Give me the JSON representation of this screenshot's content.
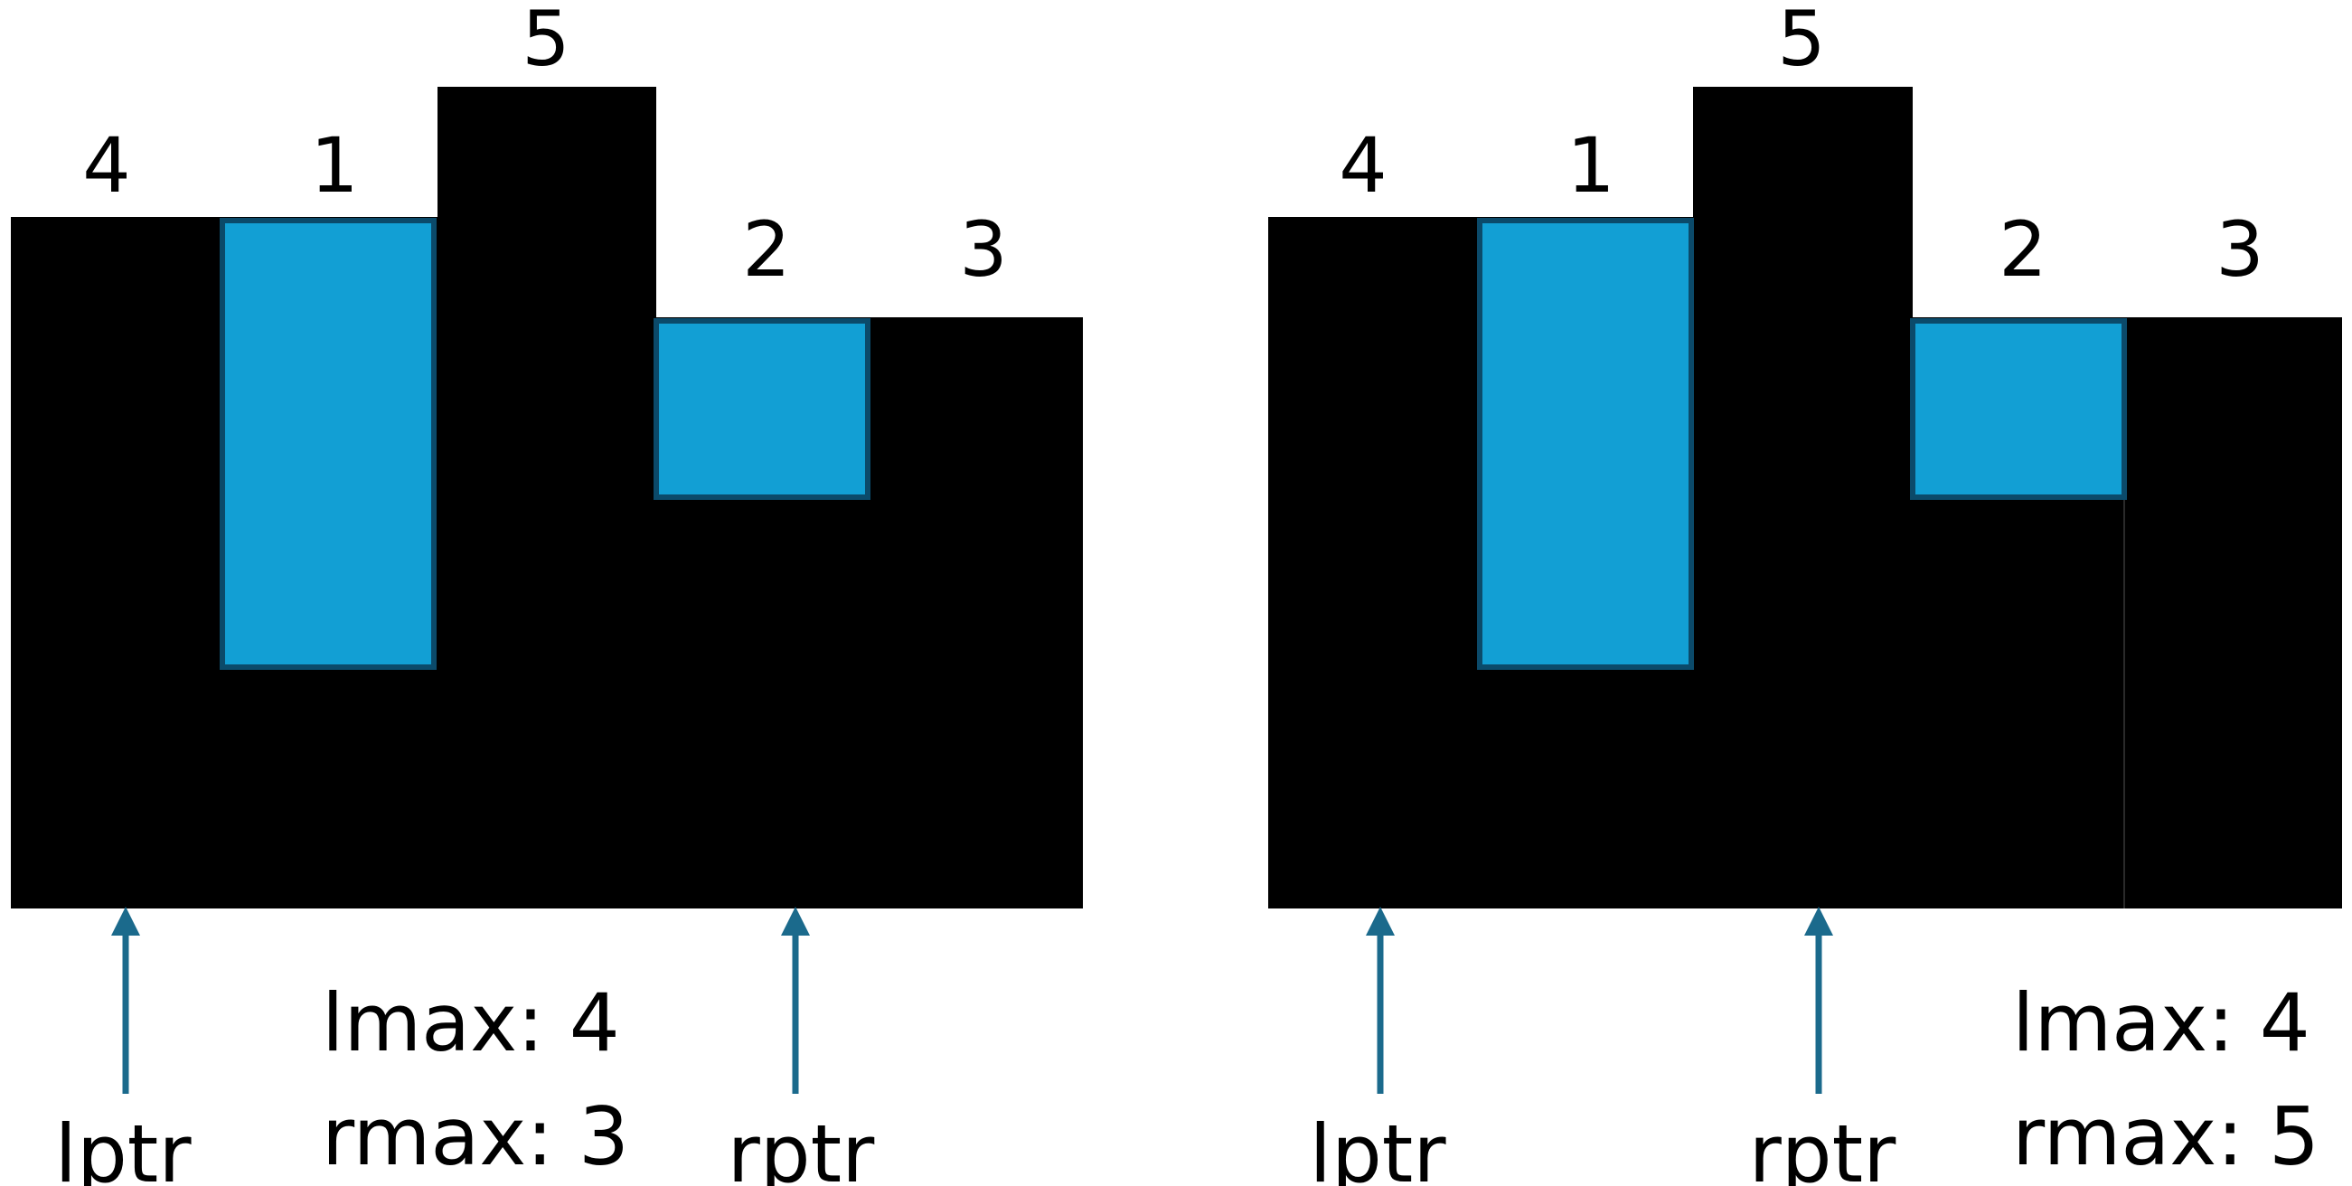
{
  "colors": {
    "bar": "#000000",
    "water": "#129fd4",
    "water_border": "#0b4a6a",
    "arrow": "#1b6a8c",
    "background": "#ffffff"
  },
  "heights": [
    "4",
    "1",
    "5",
    "2",
    "3"
  ],
  "panels": [
    {
      "lmax_label": "lmax: 4",
      "rmax_label": "rmax: 3",
      "lptr_label": "lptr",
      "rptr_label": "rptr",
      "lptr_index": 0,
      "rptr_index": 3
    },
    {
      "lmax_label": "lmax: 4",
      "rmax_label": "rmax: 5",
      "lptr_label": "lptr",
      "rptr_label": "rptr",
      "lptr_index": 0,
      "rptr_index": 2
    }
  ]
}
